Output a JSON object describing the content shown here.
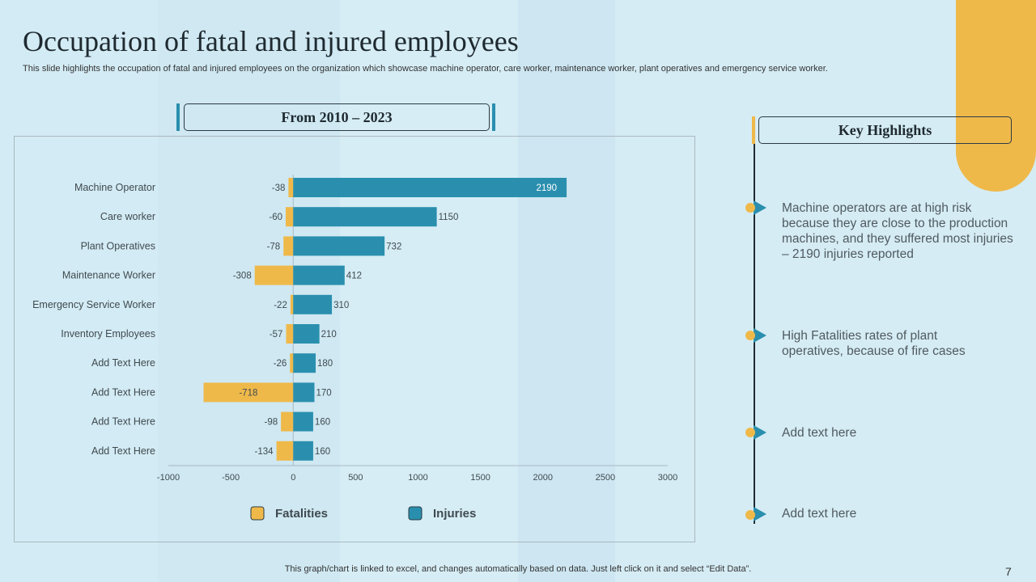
{
  "title": "Occupation of fatal and injured employees",
  "subtitle": "This slide highlights the occupation of fatal and injured employees on the organization which showcase machine operator, care worker, maintenance worker, plant operatives and emergency service worker.",
  "chart_header": "From 2010 – 2023",
  "key_highlights": {
    "title": "Key Highlights",
    "items": [
      "Machine operators are at high risk because they are close to the production machines, and they suffered most injuries – 2190 injuries reported",
      "High Fatalities rates of plant operatives, because of fire cases",
      "Add text here",
      "Add text here"
    ]
  },
  "footer": "This graph/chart is linked to excel,  and changes automatically based on data. Just left click on it and select “Edit Data”.",
  "page_number": "7",
  "colors": {
    "fatalities": "#efb94a",
    "injuries": "#2a8fae",
    "accent": "#efb94a"
  },
  "chart_data": {
    "type": "bar",
    "orientation": "horizontal",
    "stacked": "diverging",
    "categories": [
      "Machine Operator",
      "Care worker",
      "Plant Operatives",
      "Maintenance Worker",
      "Emergency Service Worker",
      "Inventory Employees",
      "Add Text Here",
      "Add Text Here",
      "Add Text Here",
      "Add Text Here"
    ],
    "series": [
      {
        "name": "Fatalities",
        "values": [
          -38,
          -60,
          -78,
          -308,
          -22,
          -57,
          -26,
          -718,
          -98,
          -134
        ]
      },
      {
        "name": "Injuries",
        "values": [
          2190,
          1150,
          732,
          412,
          310,
          210,
          180,
          170,
          160,
          160
        ]
      }
    ],
    "xlim": [
      -1000,
      3000
    ],
    "xticks": [
      "-1000",
      "-500",
      "0",
      "500",
      "1000",
      "1500",
      "2000",
      "2500",
      "3000"
    ],
    "grid": false,
    "legend": "bottom"
  }
}
